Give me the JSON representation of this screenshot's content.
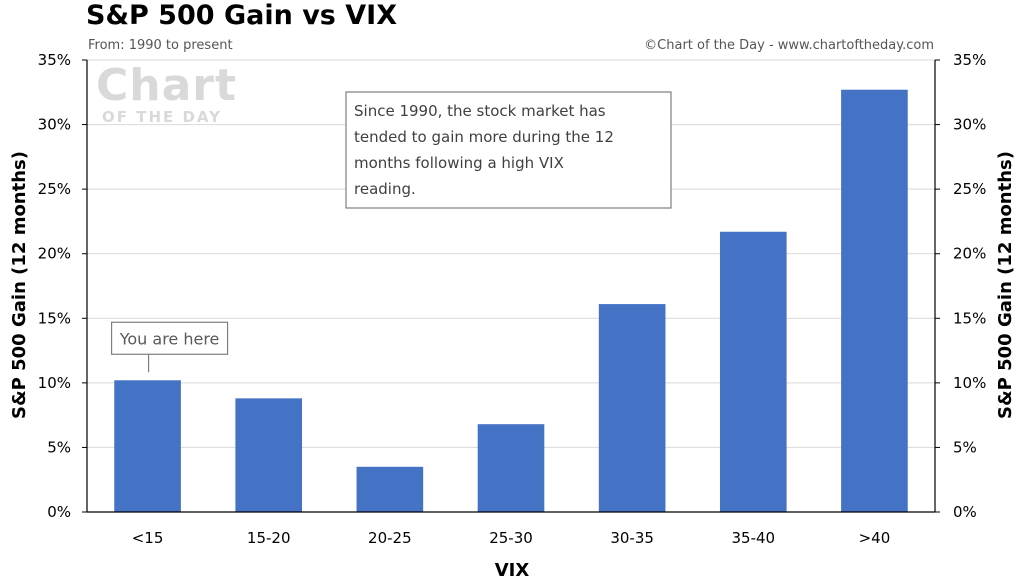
{
  "title": "S&P 500 Gain vs VIX",
  "subtitle": "From: 1990 to present",
  "credit": "©Chart of the Day - www.chartoftheday.com",
  "watermark": {
    "line1": "Chart",
    "line2": "OF THE DAY"
  },
  "annotation": "Since 1990, the stock market has tended to gain more during the 12 months following a high VIX reading.",
  "callout": "You are here",
  "colors": {
    "bar": "#4472C4",
    "grid": "#d9d9d9",
    "axis": "#000000",
    "callout_border": "#7f7f7f"
  },
  "chart_data": {
    "type": "bar",
    "categories": [
      "<15",
      "15-20",
      "20-25",
      "25-30",
      "30-35",
      "35-40",
      ">40"
    ],
    "values": [
      10.2,
      8.8,
      3.5,
      6.8,
      16.1,
      21.7,
      32.7
    ],
    "xlabel": "VIX",
    "ylabel": "S&P 500 Gain (12 months)",
    "ylabel_right": "S&P 500 Gain (12 months)",
    "ylim": [
      0,
      35
    ],
    "yticks": [
      "0%",
      "5%",
      "10%",
      "15%",
      "20%",
      "25%",
      "30%",
      "35%"
    ],
    "grid": true,
    "highlight_category_index": 0
  }
}
